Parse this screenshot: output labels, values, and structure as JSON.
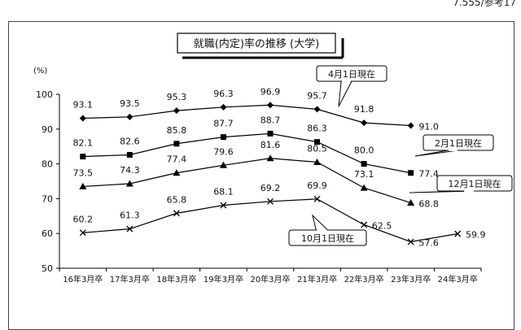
{
  "page_ref": "7.555/参考17",
  "chart_data": {
    "type": "line",
    "title": "就職(内定)率の推移 (大学)",
    "ylabel": "(%)",
    "xlabel": "",
    "ylim": [
      50,
      100
    ],
    "yticks": [
      50,
      60,
      70,
      80,
      90,
      100
    ],
    "grid": false,
    "categories": [
      "16年3月卒",
      "17年3月卒",
      "18年3月卒",
      "19年3月卒",
      "20年3月卒",
      "21年3月卒",
      "22年3月卒",
      "23年3月卒",
      "24年3月卒"
    ],
    "series": [
      {
        "name": "4月1日現在",
        "marker": "diamond",
        "values": [
          93.1,
          93.5,
          95.3,
          96.3,
          96.9,
          95.7,
          91.8,
          91.0,
          null
        ],
        "labels": [
          "93.1",
          "93.5",
          "95.3",
          "96.3",
          "96.9",
          "95.7",
          "91.8",
          "91.0",
          null
        ]
      },
      {
        "name": "2月1日現在",
        "marker": "square",
        "values": [
          82.1,
          82.6,
          85.8,
          87.7,
          88.7,
          86.3,
          80.0,
          77.4,
          null
        ],
        "labels": [
          "82.1",
          "82.6",
          "85.8",
          "87.7",
          "88.7",
          "86.3",
          "80.0",
          "77.4",
          null
        ]
      },
      {
        "name": "12月1日現在",
        "marker": "triangle",
        "values": [
          73.5,
          74.3,
          77.4,
          79.6,
          81.6,
          80.5,
          73.1,
          68.8,
          null
        ],
        "labels": [
          "73.5",
          "74.3",
          "77.4",
          "79.6",
          "81.6",
          "80.5",
          "73.1",
          "68.8",
          null
        ]
      },
      {
        "name": "10月1日現在",
        "marker": "cross",
        "values": [
          60.2,
          61.3,
          65.8,
          68.1,
          69.2,
          69.9,
          62.5,
          57.6,
          59.9
        ],
        "labels": [
          "60.2",
          "61.3",
          "65.8",
          "68.1",
          "69.2",
          "69.9",
          "62.5",
          "57.6",
          "59.9"
        ]
      }
    ],
    "colors": {
      "line": "#000000",
      "marker": "#000000"
    }
  }
}
